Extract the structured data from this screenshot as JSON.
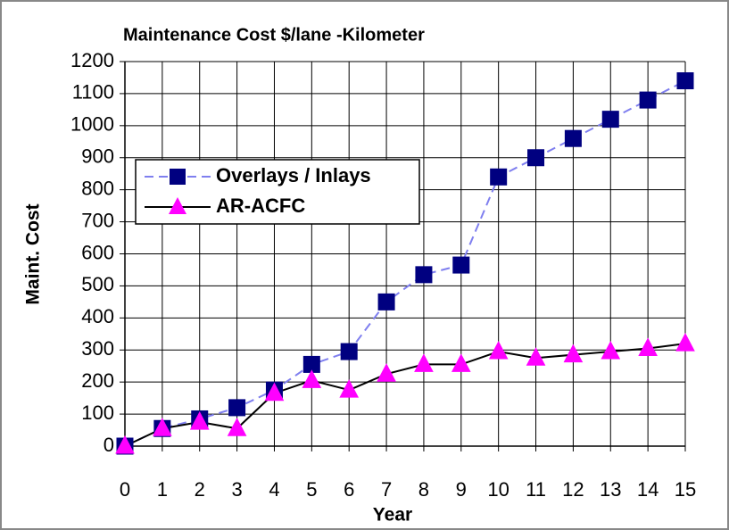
{
  "chart_data": {
    "type": "line",
    "title": "Maintenance Cost  $/lane -Kilometer",
    "x_label": "Year",
    "y_label": "Maint.  Cost",
    "x": [
      0,
      1,
      2,
      3,
      4,
      5,
      6,
      7,
      8,
      9,
      10,
      11,
      12,
      13,
      14,
      15
    ],
    "xlim": [
      0,
      15
    ],
    "xticks": [
      0,
      1,
      2,
      3,
      4,
      5,
      6,
      7,
      8,
      9,
      10,
      11,
      12,
      13,
      14,
      15
    ],
    "ylim": [
      0,
      1200
    ],
    "yticks": [
      0,
      100,
      200,
      300,
      400,
      500,
      600,
      700,
      800,
      900,
      1000,
      1100,
      1200
    ],
    "grid": true,
    "legend": "upper left",
    "series": [
      {
        "name": "Overlays /  Inlays",
        "color": "#000080",
        "line_color": "#7f7fef",
        "marker": "square",
        "dashed": true,
        "values": [
          0,
          55,
          85,
          120,
          175,
          255,
          295,
          450,
          535,
          565,
          840,
          900,
          960,
          1020,
          1080,
          1140
        ]
      },
      {
        "name": "AR-ACFC",
        "color": "#ff00ff",
        "line_color": "#000000",
        "marker": "triangle",
        "dashed": false,
        "values": [
          0,
          55,
          75,
          55,
          165,
          205,
          175,
          225,
          255,
          255,
          295,
          275,
          285,
          295,
          305,
          320
        ]
      }
    ]
  }
}
